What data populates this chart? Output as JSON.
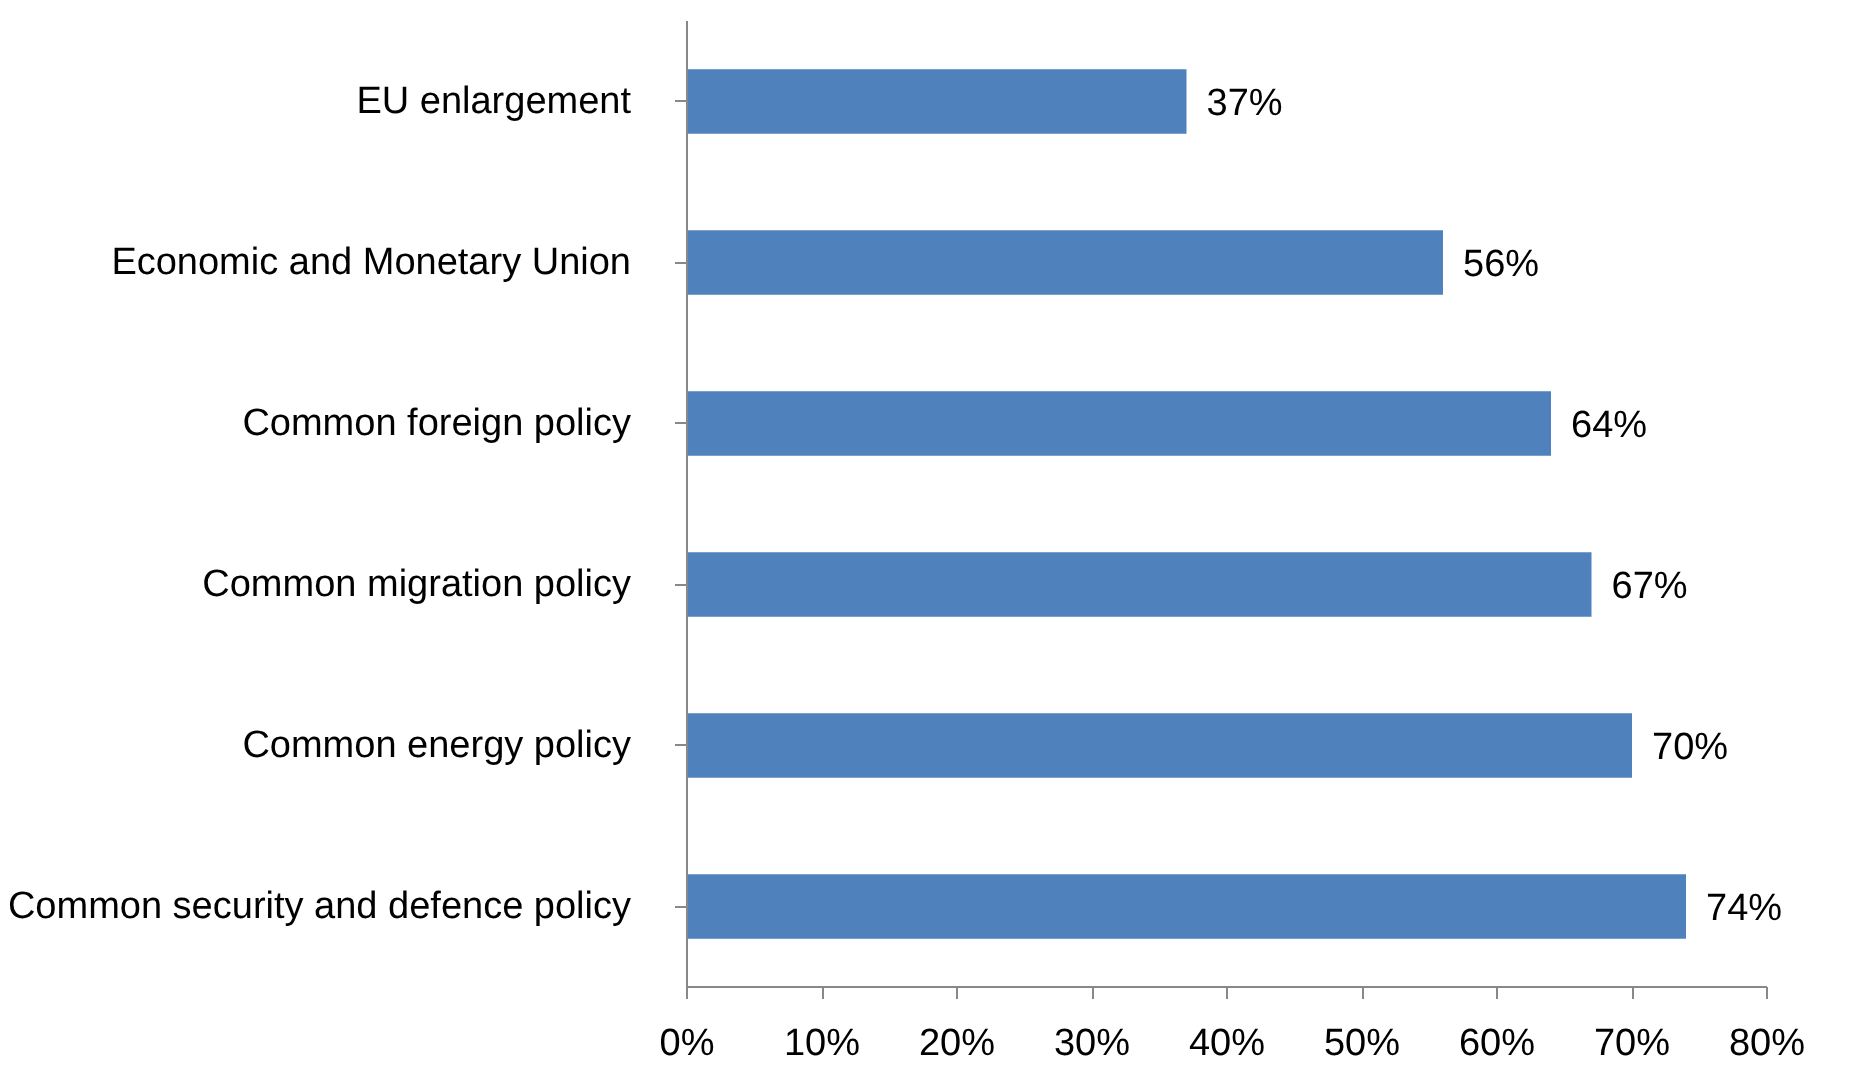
{
  "chart_data": {
    "type": "bar",
    "orientation": "horizontal",
    "categories": [
      "EU enlargement",
      "Economic and Monetary Union",
      "Common foreign policy",
      "Common migration policy",
      "Common energy policy",
      "Common security and defence policy"
    ],
    "values": [
      37,
      56,
      64,
      67,
      70,
      74
    ],
    "value_labels": [
      "37%",
      "56%",
      "64%",
      "67%",
      "70%",
      "74%"
    ],
    "color": "#4f81bd",
    "xlim": [
      0,
      80
    ],
    "xticks": [
      {
        "value": 0,
        "label": "0%"
      },
      {
        "value": 10,
        "label": "10%"
      },
      {
        "value": 20,
        "label": "20%"
      },
      {
        "value": 30,
        "label": "30%"
      },
      {
        "value": 40,
        "label": "40%"
      },
      {
        "value": 50,
        "label": "50%"
      },
      {
        "value": 60,
        "label": "60%"
      },
      {
        "value": 70,
        "label": "70%"
      },
      {
        "value": 80,
        "label": "80%"
      }
    ],
    "grid": false
  }
}
